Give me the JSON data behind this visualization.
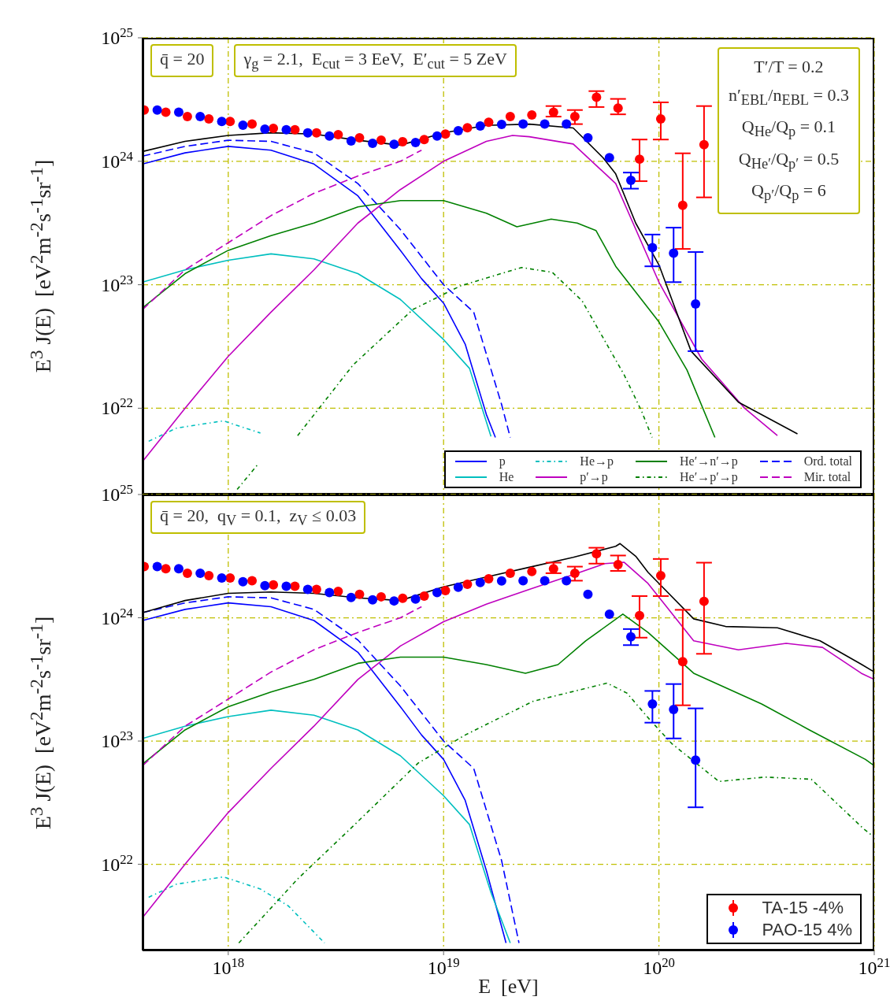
{
  "chart_data": [
    {
      "type": "line",
      "annotations": [
        "q̄ = 20",
        "γ$_{g}$ = 2.1,  E$_{cut}$ = 3 EeV,  E′$_{cut}$ = 5 ZeV",
        "T′/T = 0.2",
        "n′$_{EBL}$/n$_{EBL}$ = 0.3",
        "Q$_{He}$/Q$_{p}$ = 0.1",
        "Q$_{He′}$/Q$_{p′}$ = 0.5",
        "Q$_{p′}$/Q$_{p}$ = 6"
      ],
      "ylabel": "E$^{3}$ J(E)  [eV$^{2}$m$^{-2}$s$^{-1}$sr$^{-1}$]",
      "xlim": [
        4e+17,
        1e+21
      ],
      "ylim": [
        2e+21,
        1e+25
      ],
      "xticks": [
        {
          "value": 1e+18,
          "label": null
        },
        {
          "value": 1e+19,
          "label": null
        },
        {
          "value": 1e+20,
          "label": null
        },
        {
          "value": 1e+21,
          "label": null
        }
      ],
      "yticks": [
        {
          "value": 1e+22,
          "label": "10$^{22}$"
        },
        {
          "value": 1e+23,
          "label": "10$^{23}$"
        },
        {
          "value": 1e+24,
          "label": "10$^{24}$"
        },
        {
          "value": 1e+25,
          "label": "10$^{25}$"
        }
      ],
      "log": "xy",
      "grid": true,
      "legend": "bottom right",
      "tick_labels": "y",
      "marker": "none",
      "line_style": "solid",
      "series": [
        {
          "name": "p",
          "color": "#0000ff",
          "x": [
            4e+17,
            6.3e+17,
            1e+18,
            1.58e+18,
            2.5e+18,
            4e+18,
            6.3e+18,
            7.9e+18,
            1e+19,
            1.26e+19,
            1.58e+19,
            1.74e+19
          ],
          "values": [
            9.5e+23,
            1.17e+24,
            1.32e+24,
            1.23e+24,
            9.5e+23,
            5.25e+23,
            1.9e+23,
            1.12e+23,
            7.1e+22,
            3.3e+22,
            8.9e+21,
            5.8e+21
          ]
        },
        {
          "name": "He",
          "color": "#00bfbf",
          "x": [
            4e+17,
            6.3e+17,
            1e+18,
            1.58e+18,
            2.5e+18,
            4e+18,
            6.3e+18,
            1e+19,
            1.32e+19,
            1.66e+19
          ],
          "values": [
            1.05e+23,
            1.32e+23,
            1.58e+23,
            1.78e+23,
            1.62e+23,
            1.23e+23,
            7.6e+22,
            3.6e+22,
            2.1e+22,
            5.9e+21
          ]
        },
        {
          "name": "He→p",
          "color": "#00bfbf",
          "line_style": "dotted",
          "x": [
            4.27e+17,
            5.75e+17,
            9.5e+17,
            1.41e+18
          ],
          "values": [
            5.4e+21,
            6.9e+21,
            7.9e+21,
            6.3e+21
          ]
        },
        {
          "name": "p′→p",
          "color": "#bf00bf",
          "x": [
            4e+17,
            6.3e+17,
            1e+18,
            1.58e+18,
            2.5e+18,
            4e+18,
            6.3e+18,
            1e+19,
            1.58e+19,
            2.09e+19,
            2.5e+19,
            4e+19,
            6.3e+19,
            1e+20,
            1.58e+20,
            2.5e+20,
            3.55e+20
          ],
          "values": [
            3.7e+21,
            1e+22,
            2.63e+22,
            6e+22,
            1.32e+23,
            3.16e+23,
            5.9e+23,
            1e+24,
            1.45e+24,
            1.62e+24,
            1.58e+24,
            1.38e+24,
            6.6e+23,
            1.05e+23,
            2.5e+22,
            1e+22,
            6e+21
          ]
        },
        {
          "name": "He′→n′→p",
          "color": "#008000",
          "x": [
            4e+17,
            6.3e+17,
            1e+18,
            1.58e+18,
            2.5e+18,
            4e+18,
            6.3e+18,
            1e+19,
            1.58e+19,
            2.19e+19,
            3.16e+19,
            4.17e+19,
            5.1e+19,
            6.3e+19,
            1e+20,
            1.35e+20,
            1.82e+20
          ],
          "values": [
            6.5e+22,
            1.23e+23,
            1.9e+23,
            2.5e+23,
            3.16e+23,
            4.27e+23,
            4.8e+23,
            4.8e+23,
            3.8e+23,
            2.95e+23,
            3.4e+23,
            3.16e+23,
            2.75e+23,
            1.41e+23,
            5e+22,
            2.04e+22,
            5.8e+21
          ]
        },
        {
          "name": "He′→p′→p",
          "color": "#008000",
          "line_style": "dotted",
          "x": [
            1.1e+18,
            1.38e+18,
            1.58e+18,
            2.1e+18,
            3.8e+18,
            7.2e+18,
            1.2e+19,
            2.3e+19,
            3.2e+19,
            4.4e+19,
            6.9e+19,
            8.3e+19,
            9.3e+19
          ],
          "values": [
            2.2e+21,
            3.55e+21,
            null,
            6e+21,
            2.24e+22,
            6.3e+22,
            9.8e+22,
            1.38e+23,
            1.26e+23,
            7.4e+22,
            1.86e+22,
            9.5e+21,
            5.8e+21
          ]
        },
        {
          "name": "Ord. total",
          "color": "#0000ff",
          "line_style": "dashed",
          "x": [
            4e+17,
            6.3e+17,
            1e+18,
            1.58e+18,
            2.5e+18,
            4e+18,
            6.3e+18,
            1e+19,
            1.38e+19,
            1.86e+19,
            2.04e+19
          ],
          "values": [
            1.1e+24,
            1.32e+24,
            1.48e+24,
            1.45e+24,
            1.17e+24,
            6.6e+23,
            2.8e+23,
            1e+23,
            6e+22,
            1.07e+22,
            5.8e+21
          ]
        },
        {
          "name": "Mir. total",
          "color": "#bf00bf",
          "line_style": "dashed",
          "x": [
            4e+17,
            6.3e+17,
            1e+18,
            1.58e+18,
            2.5e+18,
            4e+18,
            6.3e+18,
            7.9e+18
          ],
          "values": [
            6.3e+22,
            1.32e+23,
            2.19e+23,
            3.63e+23,
            5.5e+23,
            7.6e+23,
            1e+24,
            1.23e+24
          ]
        },
        {
          "color": "#000000",
          "x": [
            4e+17,
            6.3e+17,
            1e+18,
            1.58e+18,
            2.5e+18,
            4e+18,
            6.3e+18,
            1e+19,
            1.58e+19,
            2.5e+19,
            4e+19,
            5.5e+19,
            6.3e+19,
            7.8e+19,
            1e+20,
            1.41e+20,
            2.34e+20,
            4.4e+20
          ],
          "values": [
            1.2e+24,
            1.45e+24,
            1.62e+24,
            1.7e+24,
            1.66e+24,
            1.48e+24,
            1.35e+24,
            1.7e+24,
            1.95e+24,
            2e+24,
            1.86e+24,
            1.07e+24,
            7.9e+23,
            3.16e+23,
            1.45e+23,
            2.9e+22,
            1.12e+22,
            6.2e+21
          ]
        },
        {
          "type": "scatter",
          "color": "#ff0000",
          "marker": "circle",
          "x": [
            4.07e+17,
            5.13e+17,
            6.46e+17,
            8.13e+17,
            1.02e+18,
            1.29e+18,
            1.62e+18,
            2.04e+18,
            2.57e+18,
            3.24e+18,
            4.07e+18,
            5.13e+18,
            6.46e+18,
            8.13e+18,
            1.02e+19,
            1.29e+19,
            1.62e+19,
            2.04e+19,
            2.57e+19,
            3.24e+19,
            4.07e+19,
            5.13e+19,
            6.46e+19,
            8.13e+19,
            1.02e+20,
            1.29e+20,
            1.62e+20
          ],
          "values": [
            2.6e+24,
            2.5e+24,
            2.3e+24,
            2.2e+24,
            2.1e+24,
            2e+24,
            1.85e+24,
            1.8e+24,
            1.7e+24,
            1.64e+24,
            1.55e+24,
            1.48e+24,
            1.44e+24,
            1.5e+24,
            1.66e+24,
            1.87e+24,
            2.07e+24,
            2.3e+24,
            2.37e+24,
            2.5e+24,
            2.3e+24,
            3.3e+24,
            2.7e+24,
            1.04e+24,
            2.2e+24,
            4.4e+23,
            1.36e+24
          ],
          "errors": [
            null,
            null,
            null,
            null,
            null,
            null,
            null,
            null,
            null,
            null,
            null,
            null,
            null,
            null,
            null,
            null,
            null,
            null,
            null,
            [
              2.3e+24,
              2.8e+24
            ],
            [
              2e+24,
              2.6e+24
            ],
            [
              2.75e+24,
              3.7e+24
            ],
            [
              2.4e+24,
              3.2e+24
            ],
            [
              6.9e+23,
              1.5e+24
            ],
            [
              1.5e+24,
              3e+24
            ],
            [
              1.95e+23,
              1.16e+24
            ],
            [
              5.1e+23,
              2.8e+24
            ]
          ]
        },
        {
          "type": "scatter",
          "color": "#0000ff",
          "marker": "circle",
          "x": [
            4.68e+17,
            5.89e+17,
            7.41e+17,
            9.33e+17,
            1.17e+18,
            1.48e+18,
            1.86e+18,
            2.34e+18,
            2.95e+18,
            3.72e+18,
            4.68e+18,
            5.89e+18,
            7.41e+18,
            9.33e+18,
            1.17e+19,
            1.48e+19,
            1.86e+19,
            2.34e+19,
            2.95e+19,
            3.72e+19,
            4.68e+19,
            5.89e+19,
            7.41e+19,
            9.33e+19,
            1.17e+20,
            1.48e+20
          ],
          "values": [
            2.6e+24,
            2.5e+24,
            2.3e+24,
            2.1e+24,
            1.96e+24,
            1.82e+24,
            1.8e+24,
            1.7e+24,
            1.6e+24,
            1.46e+24,
            1.4e+24,
            1.37e+24,
            1.42e+24,
            1.6e+24,
            1.77e+24,
            1.93e+24,
            1.99e+24,
            2e+24,
            2e+24,
            2e+24,
            1.55e+24,
            1.07e+24,
            7e+23,
            2e+23,
            1.8e+23,
            7e+22
          ],
          "errors": [
            null,
            null,
            null,
            null,
            null,
            null,
            null,
            null,
            null,
            null,
            null,
            null,
            null,
            null,
            null,
            null,
            null,
            null,
            null,
            null,
            null,
            null,
            [
              6e+23,
              8.1e+23
            ],
            [
              1.41e+23,
              2.55e+23
            ],
            [
              1.05e+23,
              2.9e+23
            ],
            [
              2.9e+22,
              1.84e+23
            ]
          ]
        }
      ]
    },
    {
      "type": "line",
      "annotations": [
        "q̄ = 20,  q$_{V}$ = 0.1,  z$_{V}$ ≤ 0.03"
      ],
      "xlabel": "E  [eV]",
      "ylabel": "E$^{3}$ J(E)  [eV$^{2}$m$^{-2}$s$^{-1}$sr$^{-1}$]",
      "xlim": [
        4e+17,
        1e+21
      ],
      "ylim": [
        2e+21,
        1e+25
      ],
      "xticks": [
        {
          "value": 1e+18,
          "label": "10$^{18}$"
        },
        {
          "value": 1e+19,
          "label": "10$^{19}$"
        },
        {
          "value": 1e+20,
          "label": "10$^{20}$"
        },
        {
          "value": 1e+21,
          "label": "10$^{21}$"
        }
      ],
      "yticks": [
        {
          "value": 1e+22,
          "label": "10$^{22}$"
        },
        {
          "value": 1e+23,
          "label": "10$^{23}$"
        },
        {
          "value": 1e+24,
          "label": "10$^{24}$"
        },
        {
          "value": 1e+25,
          "label": "10$^{25}$"
        }
      ],
      "log": "xy",
      "grid": true,
      "legend": "bottom right",
      "marker": "none",
      "line_style": "solid",
      "series": [
        {
          "color": "#0000ff",
          "x": [
            4e+17,
            6.3e+17,
            1e+18,
            1.58e+18,
            2.5e+18,
            4e+18,
            6.3e+18,
            7.9e+18,
            1e+19,
            1.26e+19,
            1.58e+19,
            1.95e+19
          ],
          "values": [
            9.5e+23,
            1.17e+24,
            1.32e+24,
            1.23e+24,
            9.5e+23,
            5.25e+23,
            1.9e+23,
            1.12e+23,
            7.1e+22,
            3.3e+22,
            8.9e+21,
            2.3e+21
          ]
        },
        {
          "color": "#00bfbf",
          "x": [
            4e+17,
            6.3e+17,
            1e+18,
            1.58e+18,
            2.5e+18,
            4e+18,
            6.3e+18,
            1e+19,
            1.32e+19,
            1.66e+19,
            2.04e+19
          ],
          "values": [
            1.05e+23,
            1.32e+23,
            1.58e+23,
            1.78e+23,
            1.62e+23,
            1.23e+23,
            7.6e+22,
            3.6e+22,
            2.1e+22,
            5.9e+21,
            2.3e+21
          ]
        },
        {
          "color": "#00bfbf",
          "line_style": "dotted",
          "x": [
            4.27e+17,
            5.75e+17,
            9.5e+17,
            1.41e+18,
            1.9e+18,
            2.8e+18
          ],
          "values": [
            5.4e+21,
            6.9e+21,
            7.9e+21,
            6.3e+21,
            4.6e+21,
            2.3e+21
          ]
        },
        {
          "color": "#bf00bf",
          "x": [
            4e+17,
            6.3e+17,
            1e+18,
            1.58e+18,
            2.5e+18,
            4e+18,
            6.3e+18,
            1e+19,
            1.58e+19,
            2.5e+19,
            4e+19,
            5.6e+19,
            6.9e+19,
            8.9e+19,
            1.45e+20,
            2.34e+20,
            3.9e+20,
            5.75e+20,
            8.7e+20,
            1e+21
          ],
          "values": [
            3.7e+21,
            1e+22,
            2.63e+22,
            6e+22,
            1.32e+23,
            3.16e+23,
            5.9e+23,
            9.3e+23,
            1.29e+24,
            1.7e+24,
            2.24e+24,
            2.75e+24,
            2.82e+24,
            1.9e+24,
            6.5e+23,
            5.5e+23,
            6.2e+23,
            5.75e+23,
            3.55e+23,
            3.16e+23
          ]
        },
        {
          "color": "#008000",
          "x": [
            4e+17,
            6.3e+17,
            1e+18,
            1.58e+18,
            2.5e+18,
            4e+18,
            6.3e+18,
            1e+19,
            1.58e+19,
            2.4e+19,
            3.4e+19,
            4.57e+19,
            6.8e+19,
            8.9e+19,
            1.45e+20,
            3e+20,
            5e+20,
            9.1e+20,
            1e+21
          ],
          "values": [
            6.5e+22,
            1.23e+23,
            1.9e+23,
            2.5e+23,
            3.16e+23,
            4.27e+23,
            4.8e+23,
            4.8e+23,
            4.17e+23,
            3.55e+23,
            4.17e+23,
            6.5e+23,
            1.07e+24,
            7.6e+23,
            3.55e+23,
            2e+23,
            1.23e+23,
            7.1e+22,
            6.3e+22
          ]
        },
        {
          "color": "#008000",
          "line_style": "dotted",
          "x": [
            1.12e+18,
            2.1e+18,
            3.8e+18,
            7.6e+18,
            1.26e+19,
            2.6e+19,
            5.75e+19,
            7.1e+19,
            9.1e+19,
            1.15e+20,
            1.9e+20,
            3.1e+20,
            5.1e+20,
            8.9e+20,
            1e+21
          ],
          "values": [
            2.3e+21,
            7.6e+21,
            2.04e+22,
            6.6e+22,
            1.12e+23,
            2.1e+23,
            2.95e+23,
            2.45e+23,
            1.48e+23,
            9.5e+22,
            4.7e+22,
            5.1e+22,
            4.9e+22,
            1.95e+22,
            1.66e+22
          ]
        },
        {
          "color": "#0000ff",
          "line_style": "dashed",
          "x": [
            4e+17,
            6.3e+17,
            1e+18,
            1.58e+18,
            2.5e+18,
            4e+18,
            6.3e+18,
            1e+19,
            1.38e+19,
            1.86e+19,
            2.24e+19
          ],
          "values": [
            1.1e+24,
            1.32e+24,
            1.48e+24,
            1.45e+24,
            1.17e+24,
            6.6e+23,
            2.8e+23,
            1e+23,
            6e+22,
            1.07e+22,
            2.3e+21
          ]
        },
        {
          "color": "#bf00bf",
          "line_style": "dashed",
          "x": [
            4e+17,
            6.3e+17,
            1e+18,
            1.58e+18,
            2.5e+18,
            4e+18,
            6.3e+18,
            7.9e+18
          ],
          "values": [
            6.3e+22,
            1.32e+23,
            2.19e+23,
            3.63e+23,
            5.5e+23,
            7.6e+23,
            1e+24,
            1.23e+24
          ]
        },
        {
          "color": "#000000",
          "x": [
            4e+17,
            6.3e+17,
            1e+18,
            1.58e+18,
            2.5e+18,
            4e+18,
            6.3e+18,
            1e+19,
            1.58e+19,
            2.5e+19,
            4e+19,
            6.3e+19,
            6.6e+19,
            7.8e+19,
            8.9e+19,
            1.45e+20,
            2.04e+20,
            3.55e+20,
            5.6e+20,
            8.7e+20,
            1e+21
          ],
          "values": [
            1.1e+24,
            1.38e+24,
            1.58e+24,
            1.62e+24,
            1.58e+24,
            1.45e+24,
            1.38e+24,
            1.78e+24,
            2.14e+24,
            2.57e+24,
            3.09e+24,
            3.8e+24,
            4e+24,
            3.16e+24,
            2.34e+24,
            9.8e+23,
            8.5e+23,
            8.3e+23,
            6.5e+23,
            4.2e+23,
            3.63e+23
          ]
        },
        {
          "type": "scatter",
          "name": "TA-15 -4%",
          "color": "#ff0000",
          "marker": "circle",
          "x": [
            4.07e+17,
            5.13e+17,
            6.46e+17,
            8.13e+17,
            1.02e+18,
            1.29e+18,
            1.62e+18,
            2.04e+18,
            2.57e+18,
            3.24e+18,
            4.07e+18,
            5.13e+18,
            6.46e+18,
            8.13e+18,
            1.02e+19,
            1.29e+19,
            1.62e+19,
            2.04e+19,
            2.57e+19,
            3.24e+19,
            4.07e+19,
            5.13e+19,
            6.46e+19,
            8.13e+19,
            1.02e+20,
            1.29e+20,
            1.62e+20
          ],
          "values": [
            2.6e+24,
            2.5e+24,
            2.3e+24,
            2.2e+24,
            2.1e+24,
            2e+24,
            1.85e+24,
            1.8e+24,
            1.7e+24,
            1.64e+24,
            1.55e+24,
            1.48e+24,
            1.44e+24,
            1.5e+24,
            1.66e+24,
            1.87e+24,
            2.07e+24,
            2.3e+24,
            2.37e+24,
            2.5e+24,
            2.3e+24,
            3.3e+24,
            2.7e+24,
            1.04e+24,
            2.2e+24,
            4.4e+23,
            1.36e+24
          ],
          "errors": [
            null,
            null,
            null,
            null,
            null,
            null,
            null,
            null,
            null,
            null,
            null,
            null,
            null,
            null,
            null,
            null,
            null,
            null,
            null,
            [
              2.3e+24,
              2.8e+24
            ],
            [
              2e+24,
              2.6e+24
            ],
            [
              2.75e+24,
              3.7e+24
            ],
            [
              2.4e+24,
              3.2e+24
            ],
            [
              6.9e+23,
              1.5e+24
            ],
            [
              1.5e+24,
              3e+24
            ],
            [
              1.95e+23,
              1.16e+24
            ],
            [
              5.1e+23,
              2.8e+24
            ]
          ]
        },
        {
          "type": "scatter",
          "name": "PAO-15 4%",
          "color": "#0000ff",
          "marker": "circle",
          "x": [
            4.68e+17,
            5.89e+17,
            7.41e+17,
            9.33e+17,
            1.17e+18,
            1.48e+18,
            1.86e+18,
            2.34e+18,
            2.95e+18,
            3.72e+18,
            4.68e+18,
            5.89e+18,
            7.41e+18,
            9.33e+18,
            1.17e+19,
            1.48e+19,
            1.86e+19,
            2.34e+19,
            2.95e+19,
            3.72e+19,
            4.68e+19,
            5.89e+19,
            7.41e+19,
            9.33e+19,
            1.17e+20,
            1.48e+20
          ],
          "values": [
            2.6e+24,
            2.5e+24,
            2.3e+24,
            2.1e+24,
            1.96e+24,
            1.82e+24,
            1.8e+24,
            1.7e+24,
            1.6e+24,
            1.46e+24,
            1.4e+24,
            1.37e+24,
            1.42e+24,
            1.6e+24,
            1.77e+24,
            1.93e+24,
            1.99e+24,
            2e+24,
            2e+24,
            2e+24,
            1.55e+24,
            1.07e+24,
            7e+23,
            2e+23,
            1.8e+23,
            7e+22
          ],
          "errors": [
            null,
            null,
            null,
            null,
            null,
            null,
            null,
            null,
            null,
            null,
            null,
            null,
            null,
            null,
            null,
            null,
            null,
            null,
            null,
            null,
            null,
            null,
            [
              6e+23,
              8.1e+23
            ],
            [
              1.41e+23,
              2.55e+23
            ],
            [
              1.05e+23,
              2.9e+23
            ],
            [
              2.9e+22,
              1.84e+23
            ]
          ]
        }
      ]
    }
  ]
}
